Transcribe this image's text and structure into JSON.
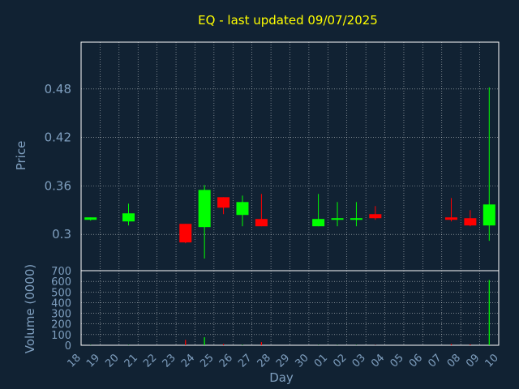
{
  "chart_data": {
    "type": "candlestick",
    "title": "EQ - last updated 09/07/2025",
    "price_ylabel": "Price",
    "volume_ylabel": "Volume (0000)",
    "xlabel": "Day",
    "x_tick_labels": [
      "18",
      "19",
      "20",
      "21",
      "22",
      "23",
      "24",
      "25",
      "26",
      "27",
      "28",
      "29",
      "30",
      "01",
      "02",
      "03",
      "04",
      "05",
      "06",
      "07",
      "08",
      "09",
      "10"
    ],
    "price_yticks": [
      "0.3",
      "0.36",
      "0.42",
      "0.48"
    ],
    "price_ylim": [
      0.255,
      0.538
    ],
    "volume_yticks": [
      "0",
      "100",
      "200",
      "300",
      "400",
      "500",
      "600",
      "700"
    ],
    "volume_ylim": [
      0,
      700
    ],
    "grid": true,
    "colors": {
      "background": "#112233",
      "up": "#00ff00",
      "down": "#ff0000",
      "grid": "#ffffff",
      "title": "#ffff00",
      "axis_text": "#7f9fbf"
    },
    "candles": [
      {
        "day": "18",
        "open": 0.318,
        "high": 0.321,
        "low": 0.317,
        "close": 0.321,
        "volume": 2
      },
      {
        "day": "20",
        "open": 0.316,
        "high": 0.338,
        "low": 0.311,
        "close": 0.326,
        "volume": 2
      },
      {
        "day": "23",
        "open": 0.313,
        "high": 0.313,
        "low": 0.289,
        "close": 0.29,
        "volume": 50
      },
      {
        "day": "24",
        "open": 0.309,
        "high": 0.361,
        "low": 0.27,
        "close": 0.355,
        "volume": 75
      },
      {
        "day": "25",
        "open": 0.346,
        "high": 0.346,
        "low": 0.325,
        "close": 0.333,
        "volume": 12
      },
      {
        "day": "26",
        "open": 0.324,
        "high": 0.348,
        "low": 0.31,
        "close": 0.34,
        "volume": 4
      },
      {
        "day": "27",
        "open": 0.319,
        "high": 0.35,
        "low": 0.31,
        "close": 0.31,
        "volume": 30
      },
      {
        "day": "30",
        "open": 0.31,
        "high": 0.35,
        "low": 0.31,
        "close": 0.319,
        "volume": 2
      },
      {
        "day": "01",
        "open": 0.318,
        "high": 0.34,
        "low": 0.31,
        "close": 0.32,
        "volume": 2
      },
      {
        "day": "02",
        "open": 0.318,
        "high": 0.34,
        "low": 0.31,
        "close": 0.32,
        "volume": 2
      },
      {
        "day": "03",
        "open": 0.325,
        "high": 0.335,
        "low": 0.318,
        "close": 0.32,
        "volume": 2
      },
      {
        "day": "07",
        "open": 0.321,
        "high": 0.345,
        "low": 0.316,
        "close": 0.318,
        "volume": 12
      },
      {
        "day": "08",
        "open": 0.32,
        "high": 0.33,
        "low": 0.31,
        "close": 0.311,
        "volume": 8
      },
      {
        "day": "09",
        "open": 0.311,
        "high": 0.482,
        "low": 0.292,
        "close": 0.337,
        "volume": 612
      }
    ]
  }
}
